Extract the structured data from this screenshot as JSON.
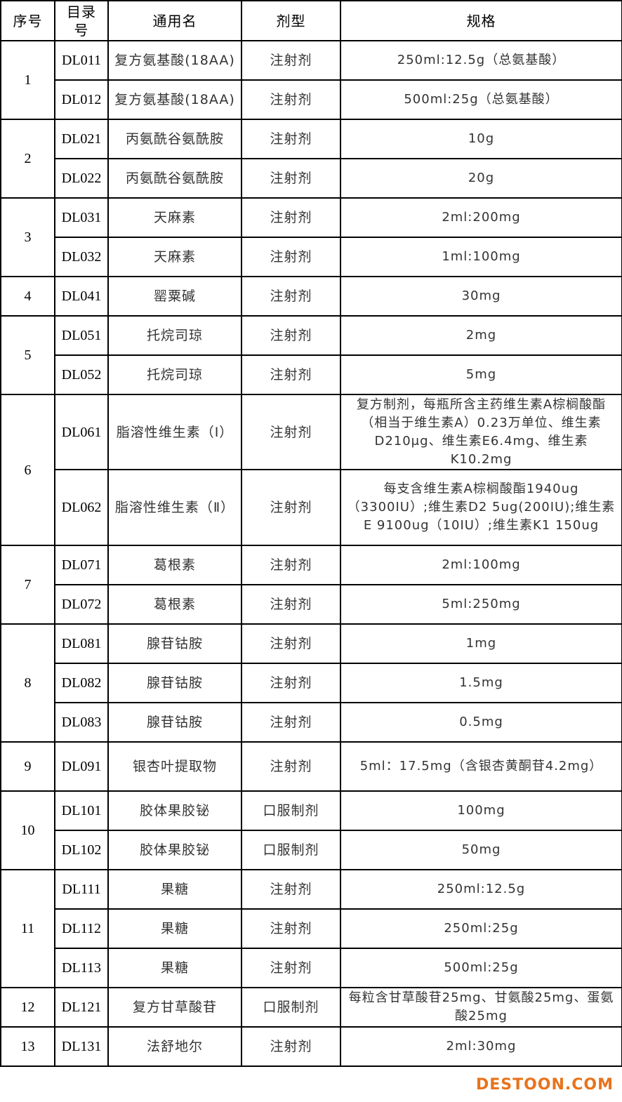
{
  "table": {
    "header": [
      "序号",
      "目录号",
      "通用名",
      "剂型",
      "规格"
    ],
    "groups": [
      {
        "no": "1",
        "items": [
          [
            "DL011",
            "复方氨基酸(18AA)",
            "注射剂",
            "250ml:12.5g（总氨基酸）"
          ],
          [
            "DL012",
            "复方氨基酸(18AA)",
            "注射剂",
            "500ml:25g（总氨基酸）"
          ]
        ]
      },
      {
        "no": "2",
        "items": [
          [
            "DL021",
            "丙氨酰谷氨酰胺",
            "注射剂",
            "10g"
          ],
          [
            "DL022",
            "丙氨酰谷氨酰胺",
            "注射剂",
            "20g"
          ]
        ]
      },
      {
        "no": "3",
        "items": [
          [
            "DL031",
            "天麻素",
            "注射剂",
            "2ml:200mg"
          ],
          [
            "DL032",
            "天麻素",
            "注射剂",
            "1ml:100mg"
          ]
        ]
      },
      {
        "no": "4",
        "items": [
          [
            "DL041",
            "罂粟碱",
            "注射剂",
            "30mg"
          ]
        ]
      },
      {
        "no": "5",
        "items": [
          [
            "DL051",
            "托烷司琼",
            "注射剂",
            "2mg"
          ],
          [
            "DL052",
            "托烷司琼",
            "注射剂",
            "5mg"
          ]
        ]
      },
      {
        "no": "6",
        "items": [
          [
            "DL061",
            "脂溶性维生素（Ⅰ）",
            "注射剂",
            "复方制剂，每瓶所含主药维生素A棕榈酸酯（相当于维生素A）0.23万单位、维生素D210μg、维生素E6.4mg、维生素K10.2mg"
          ],
          [
            "DL062",
            "脂溶性维生素（Ⅱ）",
            "注射剂",
            "每支含维生素A棕榈酸酯1940ug（3300IU）;维生素D2 5ug(200IU);维生素E 9100ug（10IU）;维生素K1 150ug"
          ]
        ]
      },
      {
        "no": "7",
        "items": [
          [
            "DL071",
            "葛根素",
            "注射剂",
            "2ml:100mg"
          ],
          [
            "DL072",
            "葛根素",
            "注射剂",
            "5ml:250mg"
          ]
        ]
      },
      {
        "no": "8",
        "items": [
          [
            "DL081",
            "腺苷钴胺",
            "注射剂",
            "1mg"
          ],
          [
            "DL082",
            "腺苷钴胺",
            "注射剂",
            "1.5mg"
          ],
          [
            "DL083",
            "腺苷钴胺",
            "注射剂",
            "0.5mg"
          ]
        ]
      },
      {
        "no": "9",
        "items": [
          [
            "DL091",
            "银杏叶提取物",
            "注射剂",
            "5ml：17.5mg（含银杏黄酮苷4.2mg）"
          ]
        ]
      },
      {
        "no": "10",
        "items": [
          [
            "DL101",
            "胶体果胶铋",
            "口服制剂",
            "100mg"
          ],
          [
            "DL102",
            "胶体果胶铋",
            "口服制剂",
            "50mg"
          ]
        ]
      },
      {
        "no": "11",
        "items": [
          [
            "DL111",
            "果糖",
            "注射剂",
            "250ml:12.5g"
          ],
          [
            "DL112",
            "果糖",
            "注射剂",
            "250ml:25g"
          ],
          [
            "DL113",
            "果糖",
            "注射剂",
            "500ml:25g"
          ]
        ]
      },
      {
        "no": "12",
        "items": [
          [
            "DL121",
            "复方甘草酸苷",
            "口服制剂",
            "每粒含甘草酸苷25mg、甘氨酸25mg、蛋氨酸25mg"
          ]
        ]
      },
      {
        "no": "13",
        "items": [
          [
            "DL131",
            "法舒地尔",
            "注射剂",
            "2ml:30mg"
          ]
        ]
      }
    ]
  },
  "watermark": "DESTOON.COM"
}
